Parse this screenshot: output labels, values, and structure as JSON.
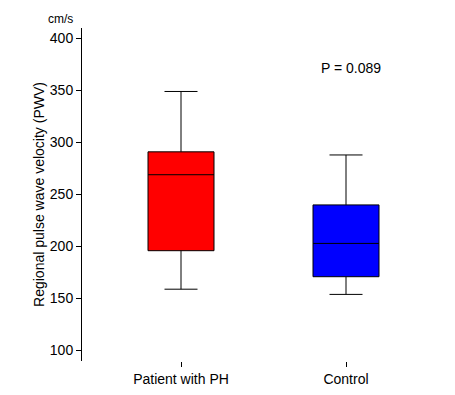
{
  "chart_data": {
    "type": "box",
    "y_label": "Regional pulse wave velocity (PWV)",
    "annotations": [
      "cm/s",
      "P = 0.089"
    ],
    "categories": [
      "Patient with PH",
      "Control"
    ],
    "colors": [
      "#ff0000",
      "#0000ff"
    ],
    "min": [
      159,
      154
    ],
    "q1": [
      196,
      171
    ],
    "median": [
      269,
      203
    ],
    "q3": [
      291,
      240
    ],
    "max": [
      349,
      288
    ],
    "ylim": [
      90,
      410
    ],
    "yticks": [
      100,
      150,
      200,
      250,
      300,
      350,
      400
    ],
    "grid": false
  }
}
